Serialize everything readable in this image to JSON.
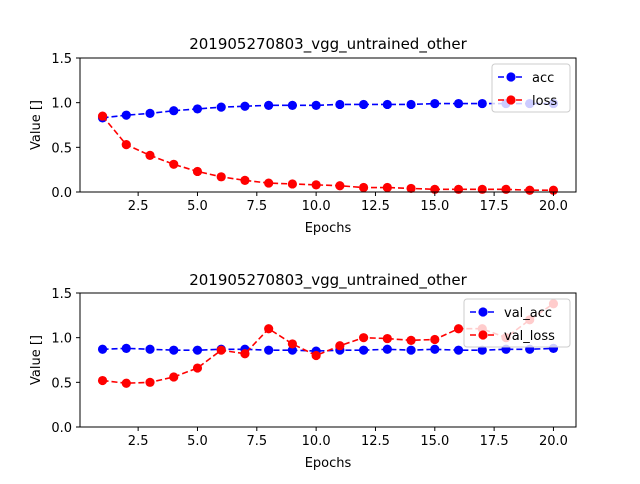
{
  "chart_data": [
    {
      "type": "line",
      "title": "201905270803_vgg_untrained_other",
      "xlabel": "Epochs",
      "ylabel": "Value []",
      "xlim": [
        0.05,
        20.95
      ],
      "ylim": [
        0.0,
        1.5
      ],
      "xticks": [
        2.5,
        5.0,
        7.5,
        10.0,
        12.5,
        15.0,
        17.5,
        20.0
      ],
      "xtick_labels": [
        "2.5",
        "5.0",
        "7.5",
        "10.0",
        "12.5",
        "15.0",
        "17.5",
        "20.0"
      ],
      "yticks": [
        0.0,
        0.5,
        1.0,
        1.5
      ],
      "ytick_labels": [
        "0.0",
        "0.5",
        "1.0",
        "1.5"
      ],
      "grid": false,
      "legend_position": "top-right",
      "x": [
        1,
        2,
        3,
        4,
        5,
        6,
        7,
        8,
        9,
        10,
        11,
        12,
        13,
        14,
        15,
        16,
        17,
        18,
        19,
        20
      ],
      "series": [
        {
          "name": "acc",
          "color": "#0000ff",
          "values": [
            0.83,
            0.86,
            0.88,
            0.91,
            0.93,
            0.95,
            0.96,
            0.97,
            0.97,
            0.97,
            0.98,
            0.98,
            0.98,
            0.98,
            0.99,
            0.99,
            0.99,
            0.99,
            0.99,
            0.99
          ]
        },
        {
          "name": "loss",
          "color": "#ff0000",
          "values": [
            0.85,
            0.53,
            0.41,
            0.31,
            0.23,
            0.17,
            0.13,
            0.1,
            0.09,
            0.08,
            0.07,
            0.05,
            0.05,
            0.04,
            0.03,
            0.03,
            0.03,
            0.03,
            0.02,
            0.02
          ]
        }
      ]
    },
    {
      "type": "line",
      "title": "201905270803_vgg_untrained_other",
      "xlabel": "Epochs",
      "ylabel": "Value []",
      "xlim": [
        0.05,
        20.95
      ],
      "ylim": [
        0.0,
        1.5
      ],
      "xticks": [
        2.5,
        5.0,
        7.5,
        10.0,
        12.5,
        15.0,
        17.5,
        20.0
      ],
      "xtick_labels": [
        "2.5",
        "5.0",
        "7.5",
        "10.0",
        "12.5",
        "15.0",
        "17.5",
        "20.0"
      ],
      "yticks": [
        0.0,
        0.5,
        1.0,
        1.5
      ],
      "ytick_labels": [
        "0.0",
        "0.5",
        "1.0",
        "1.5"
      ],
      "grid": false,
      "legend_position": "top-right",
      "x": [
        1,
        2,
        3,
        4,
        5,
        6,
        7,
        8,
        9,
        10,
        11,
        12,
        13,
        14,
        15,
        16,
        17,
        18,
        19,
        20
      ],
      "series": [
        {
          "name": "val_acc",
          "color": "#0000ff",
          "values": [
            0.87,
            0.88,
            0.87,
            0.86,
            0.86,
            0.87,
            0.87,
            0.86,
            0.86,
            0.85,
            0.86,
            0.86,
            0.87,
            0.86,
            0.87,
            0.86,
            0.86,
            0.87,
            0.87,
            0.88
          ]
        },
        {
          "name": "val_loss",
          "color": "#ff0000",
          "values": [
            0.52,
            0.49,
            0.5,
            0.56,
            0.66,
            0.86,
            0.82,
            1.1,
            0.93,
            0.8,
            0.91,
            1.0,
            0.99,
            0.97,
            0.98,
            1.1,
            1.1,
            1.0,
            1.2,
            1.38
          ]
        }
      ]
    }
  ]
}
